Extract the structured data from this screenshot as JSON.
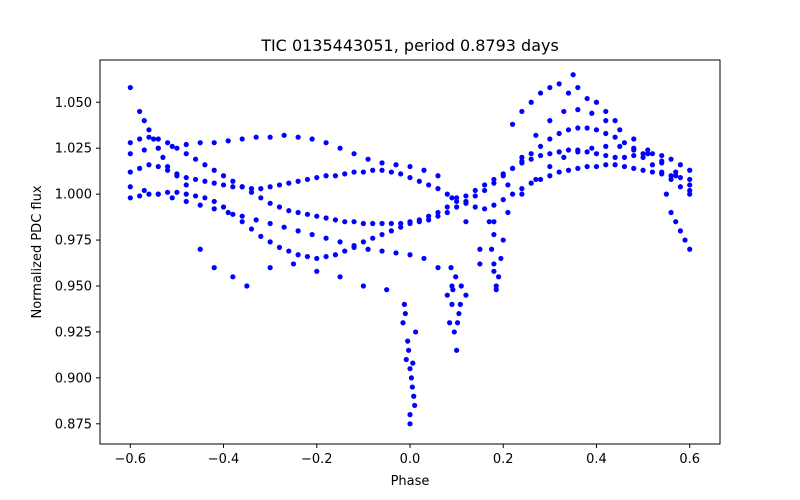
{
  "chart_data": {
    "type": "scatter",
    "title": "TIC 0135443051, period 0.8793 days",
    "xlabel": "Phase",
    "ylabel": "Normalized PDC flux",
    "xlim": [
      -0.665,
      0.665
    ],
    "ylim": [
      0.864,
      1.073
    ],
    "xticks": [
      -0.6,
      -0.4,
      -0.2,
      0.0,
      0.2,
      0.4,
      0.6
    ],
    "xtick_labels": [
      "−0.6",
      "−0.4",
      "−0.2",
      "0.0",
      "0.2",
      "0.4",
      "0.6"
    ],
    "yticks": [
      0.875,
      0.9,
      0.925,
      0.95,
      0.975,
      1.0,
      1.025,
      1.05
    ],
    "ytick_labels": [
      "0.875",
      "0.900",
      "0.925",
      "0.950",
      "0.975",
      "1.000",
      "1.025",
      "1.050"
    ],
    "grid": false,
    "marker_color": "#0000ff",
    "series": [
      {
        "name": "PDC flux",
        "x": [
          -0.6,
          -0.58,
          -0.56,
          -0.54,
          -0.52,
          -0.5,
          -0.48,
          -0.46,
          -0.44,
          -0.42,
          -0.4,
          -0.38,
          -0.36,
          -0.34,
          -0.32,
          -0.3,
          -0.28,
          -0.26,
          -0.24,
          -0.22,
          -0.2,
          -0.18,
          -0.16,
          -0.14,
          -0.12,
          -0.1,
          -0.08,
          -0.06,
          -0.04,
          -0.02,
          0.0,
          0.02,
          0.04,
          0.06,
          0.08,
          0.1,
          0.12,
          0.14,
          0.16,
          0.18,
          0.2,
          0.22,
          0.24,
          0.26,
          0.28,
          0.3,
          0.32,
          0.34,
          0.36,
          0.38,
          0.4,
          0.42,
          0.44,
          0.46,
          0.48,
          0.5,
          0.52,
          0.54,
          0.56,
          0.58,
          0.6,
          -0.6,
          -0.58,
          -0.56,
          -0.54,
          -0.52,
          -0.5,
          -0.48,
          -0.46,
          -0.44,
          -0.42,
          -0.4,
          -0.38,
          -0.36,
          -0.34,
          -0.32,
          -0.3,
          -0.28,
          -0.26,
          -0.24,
          -0.22,
          -0.2,
          -0.18,
          -0.16,
          -0.14,
          -0.12,
          -0.1,
          -0.08,
          -0.06,
          -0.04,
          -0.02,
          0.0,
          0.02,
          0.04,
          0.06,
          0.08,
          0.1,
          0.12,
          0.14,
          0.16,
          0.18,
          0.2,
          0.22,
          0.24,
          0.26,
          0.28,
          0.3,
          0.32,
          0.34,
          0.36,
          0.38,
          0.4,
          0.42,
          0.44,
          0.46,
          0.48,
          0.5,
          0.52,
          0.54,
          0.56,
          0.58,
          0.6,
          -0.6,
          -0.58,
          -0.56,
          -0.54,
          -0.52,
          -0.5,
          -0.48,
          -0.46,
          -0.44,
          -0.42,
          -0.4,
          -0.38,
          -0.36,
          -0.34,
          -0.32,
          -0.3,
          -0.28,
          -0.26,
          -0.24,
          -0.22,
          -0.2,
          -0.18,
          -0.16,
          -0.14,
          -0.12,
          -0.1,
          -0.08,
          -0.06,
          -0.04,
          -0.02,
          0.0,
          0.02,
          0.04,
          0.06,
          0.08,
          0.1,
          0.12,
          0.14,
          0.16,
          0.18,
          0.2,
          0.22,
          0.24,
          0.26,
          0.28,
          0.3,
          0.32,
          0.34,
          0.36,
          0.38,
          0.4,
          0.42,
          0.44,
          0.46,
          0.48,
          0.5,
          0.52,
          0.54,
          0.56,
          0.58,
          0.6,
          -0.6,
          -0.57,
          -0.54,
          -0.51,
          -0.48,
          -0.45,
          -0.42,
          -0.39,
          -0.36,
          -0.33,
          -0.3,
          -0.27,
          -0.24,
          -0.21,
          -0.18,
          -0.15,
          -0.12,
          -0.09,
          -0.06,
          -0.03,
          0.0,
          0.03,
          0.06,
          0.09,
          0.12,
          0.15,
          0.18,
          0.21,
          0.24,
          0.27,
          0.3,
          0.33,
          0.36,
          0.39,
          0.42,
          0.45,
          0.48,
          0.51,
          0.54,
          0.57,
          0.6,
          -0.6,
          -0.57,
          -0.54,
          -0.51,
          -0.48,
          -0.45,
          -0.42,
          -0.39,
          -0.36,
          -0.33,
          -0.3,
          -0.27,
          -0.24,
          -0.21,
          -0.18,
          -0.15,
          -0.12,
          -0.09,
          -0.06,
          -0.03,
          0.0,
          0.03,
          0.06,
          0.09,
          0.12,
          0.15,
          0.18,
          0.21,
          0.24,
          0.27,
          0.3,
          0.33,
          0.36,
          0.39,
          0.42,
          0.45,
          0.48,
          0.51,
          0.54,
          0.57,
          0.6,
          -0.01,
          -0.005,
          0.0,
          0.005,
          0.01,
          -0.015,
          0.0,
          0.008,
          -0.008,
          0.003,
          -0.003,
          0.012,
          -0.012,
          0.0,
          0.006,
          0.08,
          0.085,
          0.09,
          0.095,
          0.1,
          0.105,
          0.11,
          0.088,
          0.098,
          0.102,
          0.092,
          0.108,
          0.17,
          0.175,
          0.18,
          0.185,
          0.19,
          0.195,
          0.2,
          0.18,
          0.185,
          0.22,
          0.24,
          0.26,
          0.28,
          0.3,
          0.32,
          0.34,
          0.35,
          0.36,
          0.38,
          0.4,
          0.42,
          0.44,
          -0.6,
          -0.58,
          -0.57,
          -0.56,
          -0.55,
          -0.54,
          -0.53,
          -0.52,
          -0.5,
          -0.48,
          0.55,
          0.56,
          0.57,
          0.58,
          0.59,
          0.6,
          -0.45,
          -0.42,
          -0.38,
          -0.35,
          -0.3,
          -0.25,
          -0.2,
          -0.15,
          -0.1,
          -0.05
        ],
        "y": [
          1.012,
          1.014,
          1.016,
          1.015,
          1.013,
          1.011,
          1.009,
          1.008,
          1.007,
          1.006,
          1.005,
          1.004,
          1.004,
          1.003,
          1.003,
          1.004,
          1.005,
          1.006,
          1.007,
          1.008,
          1.009,
          1.01,
          1.01,
          1.011,
          1.012,
          1.012,
          1.013,
          1.013,
          1.012,
          1.011,
          1.009,
          1.007,
          1.005,
          1.003,
          1.0,
          0.998,
          0.995,
          0.993,
          0.992,
          0.994,
          0.997,
          1.0,
          1.003,
          1.006,
          1.008,
          1.01,
          1.012,
          1.013,
          1.014,
          1.015,
          1.015,
          1.016,
          1.016,
          1.015,
          1.014,
          1.013,
          1.012,
          1.011,
          1.01,
          1.009,
          1.008,
          1.028,
          1.03,
          1.031,
          1.03,
          1.028,
          1.025,
          1.022,
          1.019,
          1.016,
          1.013,
          1.01,
          1.007,
          1.004,
          1.001,
          0.998,
          0.995,
          0.993,
          0.991,
          0.99,
          0.989,
          0.988,
          0.987,
          0.986,
          0.985,
          0.985,
          0.984,
          0.984,
          0.984,
          0.984,
          0.984,
          0.985,
          0.986,
          0.988,
          0.99,
          0.993,
          0.996,
          0.999,
          1.002,
          1.005,
          1.008,
          1.011,
          1.014,
          1.017,
          1.019,
          1.021,
          1.022,
          1.023,
          1.024,
          1.024,
          1.023,
          1.022,
          1.021,
          1.02,
          1.02,
          1.021,
          1.022,
          1.022,
          1.021,
          1.019,
          1.016,
          1.013,
          0.998,
          0.999,
          1.0,
          1.0,
          1.001,
          1.001,
          1.0,
          0.999,
          0.998,
          0.996,
          0.993,
          0.989,
          0.985,
          0.981,
          0.977,
          0.974,
          0.971,
          0.969,
          0.967,
          0.966,
          0.965,
          0.966,
          0.967,
          0.969,
          0.971,
          0.974,
          0.976,
          0.978,
          0.98,
          0.982,
          0.984,
          0.985,
          0.986,
          0.988,
          0.99,
          0.993,
          0.996,
          0.999,
          1.002,
          1.006,
          1.01,
          1.014,
          1.018,
          1.022,
          1.026,
          1.03,
          1.033,
          1.035,
          1.036,
          1.036,
          1.035,
          1.033,
          1.031,
          1.028,
          1.024,
          1.02,
          1.016,
          1.012,
          1.008,
          1.004,
          1.0,
          1.022,
          1.024,
          1.025,
          1.026,
          1.027,
          1.028,
          1.028,
          1.029,
          1.03,
          1.031,
          1.031,
          1.032,
          1.031,
          1.03,
          1.028,
          1.025,
          1.022,
          1.019,
          1.017,
          1.016,
          1.015,
          1.013,
          1.01,
          0.998,
          0.985,
          0.97,
          0.978,
          0.99,
          1.0,
          1.008,
          1.015,
          1.02,
          1.023,
          1.025,
          1.026,
          1.026,
          1.025,
          1.022,
          1.018,
          1.012,
          1.005,
          1.004,
          1.002,
          1.0,
          0.998,
          0.996,
          0.994,
          0.992,
          0.99,
          0.988,
          0.986,
          0.984,
          0.982,
          0.98,
          0.978,
          0.976,
          0.974,
          0.972,
          0.97,
          0.969,
          0.968,
          0.967,
          0.965,
          0.96,
          0.95,
          0.945,
          0.962,
          0.985,
          1.005,
          1.02,
          1.032,
          1.04,
          1.045,
          1.046,
          1.044,
          1.04,
          1.035,
          1.03,
          1.024,
          1.017,
          1.01,
          1.002,
          0.935,
          0.92,
          0.905,
          0.895,
          0.885,
          0.93,
          0.875,
          0.89,
          0.91,
          0.9,
          0.915,
          0.925,
          0.94,
          0.88,
          0.908,
          0.945,
          0.93,
          0.94,
          0.925,
          0.915,
          0.935,
          0.95,
          0.96,
          0.955,
          0.93,
          0.948,
          0.94,
          0.985,
          0.97,
          0.958,
          0.95,
          0.955,
          0.965,
          0.975,
          0.962,
          0.948,
          1.038,
          1.045,
          1.05,
          1.055,
          1.058,
          1.06,
          1.055,
          1.065,
          1.058,
          1.052,
          1.05,
          1.045,
          1.04,
          1.058,
          1.045,
          1.04,
          1.035,
          1.03,
          1.025,
          1.02,
          1.015,
          1.01,
          1.005,
          1.0,
          0.99,
          0.985,
          0.98,
          0.975,
          0.97,
          0.97,
          0.96,
          0.955,
          0.95,
          0.96,
          0.962,
          0.958,
          0.955,
          0.95,
          0.948
        ]
      }
    ]
  }
}
